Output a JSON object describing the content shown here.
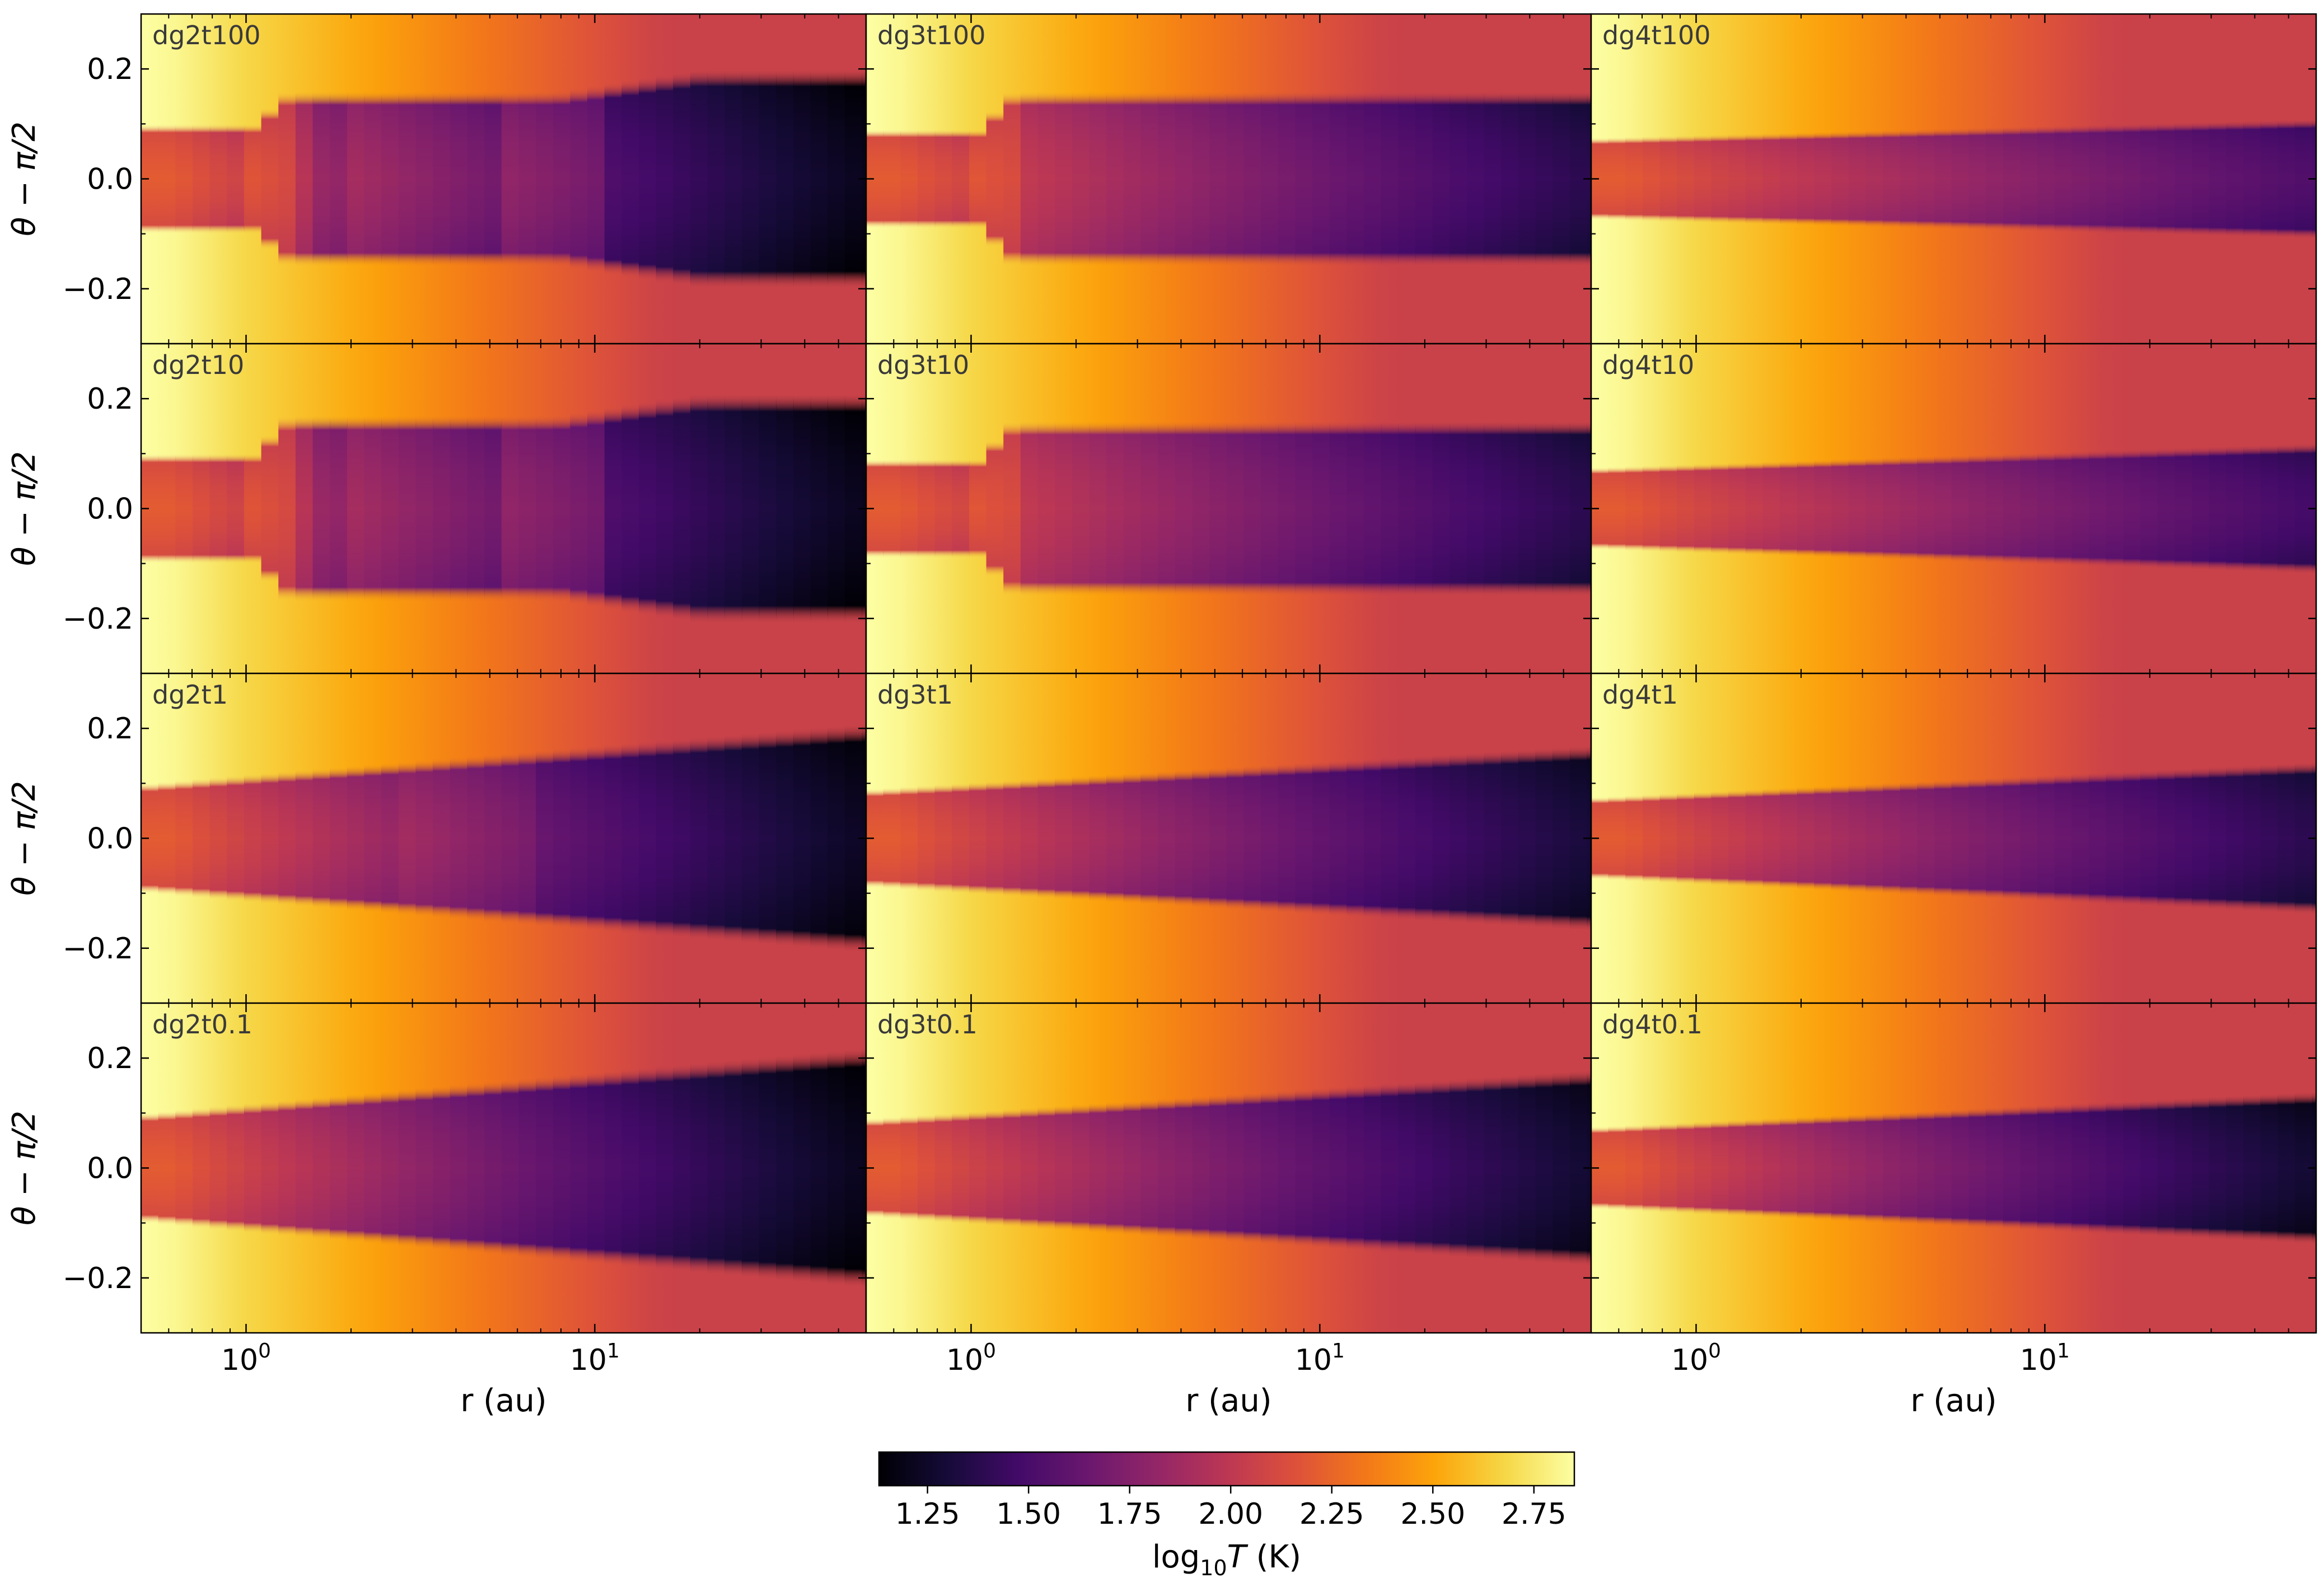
{
  "chart_data": {
    "type": "heatmap",
    "grid": false,
    "x_scale": "log",
    "xlim": [
      0.5,
      60
    ],
    "ylim": [
      -0.3,
      0.3
    ],
    "xlabel": "r (au)",
    "ylabel": "θ − π/2",
    "x_ticks": [
      {
        "value": 1,
        "base": "10",
        "exp": "0"
      },
      {
        "value": 10,
        "base": "10",
        "exp": "1"
      }
    ],
    "y_ticks": [
      {
        "value": 0.2,
        "label": "0.2"
      },
      {
        "value": 0.0,
        "label": "0.0"
      },
      {
        "value": -0.2,
        "label": "−0.2"
      }
    ],
    "colorbar": {
      "colormap": "inferno",
      "range": [
        1.13,
        2.85
      ],
      "ticks": [
        1.25,
        1.5,
        1.75,
        2.0,
        2.25,
        2.5,
        2.75
      ],
      "tick_labels": [
        "1.25",
        "1.50",
        "1.75",
        "2.00",
        "2.25",
        "2.50",
        "2.75"
      ],
      "label_prefix": "log",
      "label_sub": "10",
      "label_var": "T",
      "label_unit": " (K)"
    },
    "panels": [
      {
        "name": "dg2t100",
        "structure": "strong",
        "h_in": 0.09,
        "h_out": 0.15,
        "dark": 1.18
      },
      {
        "name": "dg3t100",
        "structure": "mild",
        "h_in": 0.08,
        "h_out": 0.15,
        "dark": 1.35
      },
      {
        "name": "dg4t100",
        "structure": "smooth",
        "h_in": 0.065,
        "h_out": 0.1,
        "dark": 1.5
      },
      {
        "name": "dg2t10",
        "structure": "strong",
        "h_in": 0.09,
        "h_out": 0.16,
        "dark": 1.18
      },
      {
        "name": "dg3t10",
        "structure": "mild",
        "h_in": 0.08,
        "h_out": 0.15,
        "dark": 1.35
      },
      {
        "name": "dg4t10",
        "structure": "smooth",
        "h_in": 0.065,
        "h_out": 0.11,
        "dark": 1.45
      },
      {
        "name": "dg2t1",
        "structure": "medium",
        "h_in": 0.09,
        "h_out": 0.2,
        "dark": 1.2
      },
      {
        "name": "dg3t1",
        "structure": "smooth",
        "h_in": 0.08,
        "h_out": 0.16,
        "dark": 1.28
      },
      {
        "name": "dg4t1",
        "structure": "smooth",
        "h_in": 0.065,
        "h_out": 0.13,
        "dark": 1.35
      },
      {
        "name": "dg2t0.1",
        "structure": "smooth",
        "h_in": 0.09,
        "h_out": 0.21,
        "dark": 1.18
      },
      {
        "name": "dg3t0.1",
        "structure": "smooth",
        "h_in": 0.08,
        "h_out": 0.17,
        "dark": 1.25
      },
      {
        "name": "dg4t0.1",
        "structure": "smooth",
        "h_in": 0.065,
        "h_out": 0.13,
        "dark": 1.25
      }
    ]
  }
}
